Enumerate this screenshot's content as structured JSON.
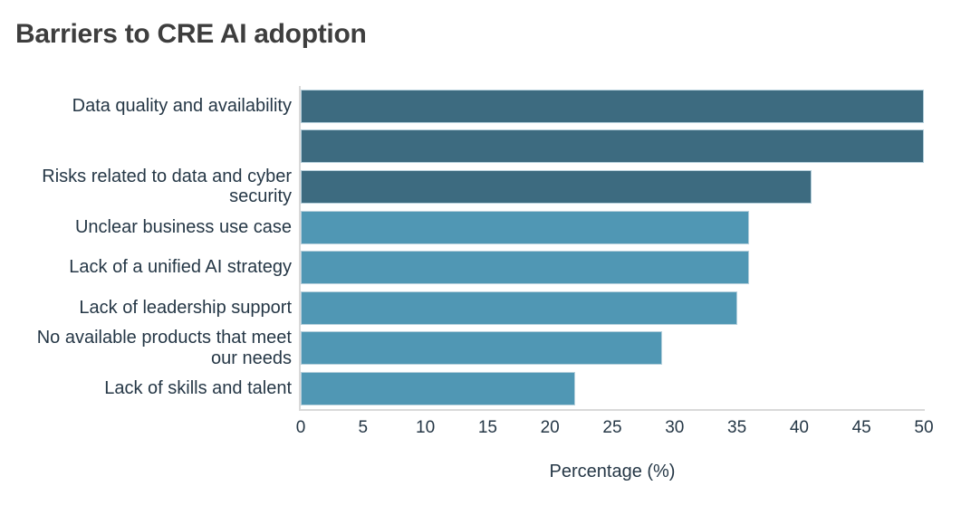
{
  "chart_data": {
    "type": "bar",
    "orientation": "horizontal",
    "title": "Barriers to CRE AI adoption",
    "xlabel": "Percentage (%)",
    "xlim": [
      0,
      50
    ],
    "x_ticks": [
      0,
      5,
      10,
      15,
      20,
      25,
      30,
      35,
      40,
      45,
      50
    ],
    "grid": false,
    "legend": "none",
    "categories": [
      "Data quality and availability",
      "",
      "Risks related to data and cyber\nsecurity",
      "Unclear business use case",
      "Lack of a unified AI strategy",
      "Lack of leadership support",
      "No available products that meet\nour needs",
      "Lack of skills and talent"
    ],
    "values": [
      50,
      50,
      41,
      36,
      36,
      35,
      29,
      22
    ],
    "bar_color_keys": [
      "dark",
      "dark",
      "dark",
      "light",
      "light",
      "light",
      "light",
      "light"
    ],
    "colors": {
      "dark_bar": "#3d6b80",
      "light_bar": "#5097b4",
      "bar_border": "#b6d0dc",
      "axis_line": "#d9d9d9",
      "label_text": "#253746",
      "tick_text": "#253746",
      "title_text": "#3e3e3e",
      "background": "#ffffff"
    }
  }
}
